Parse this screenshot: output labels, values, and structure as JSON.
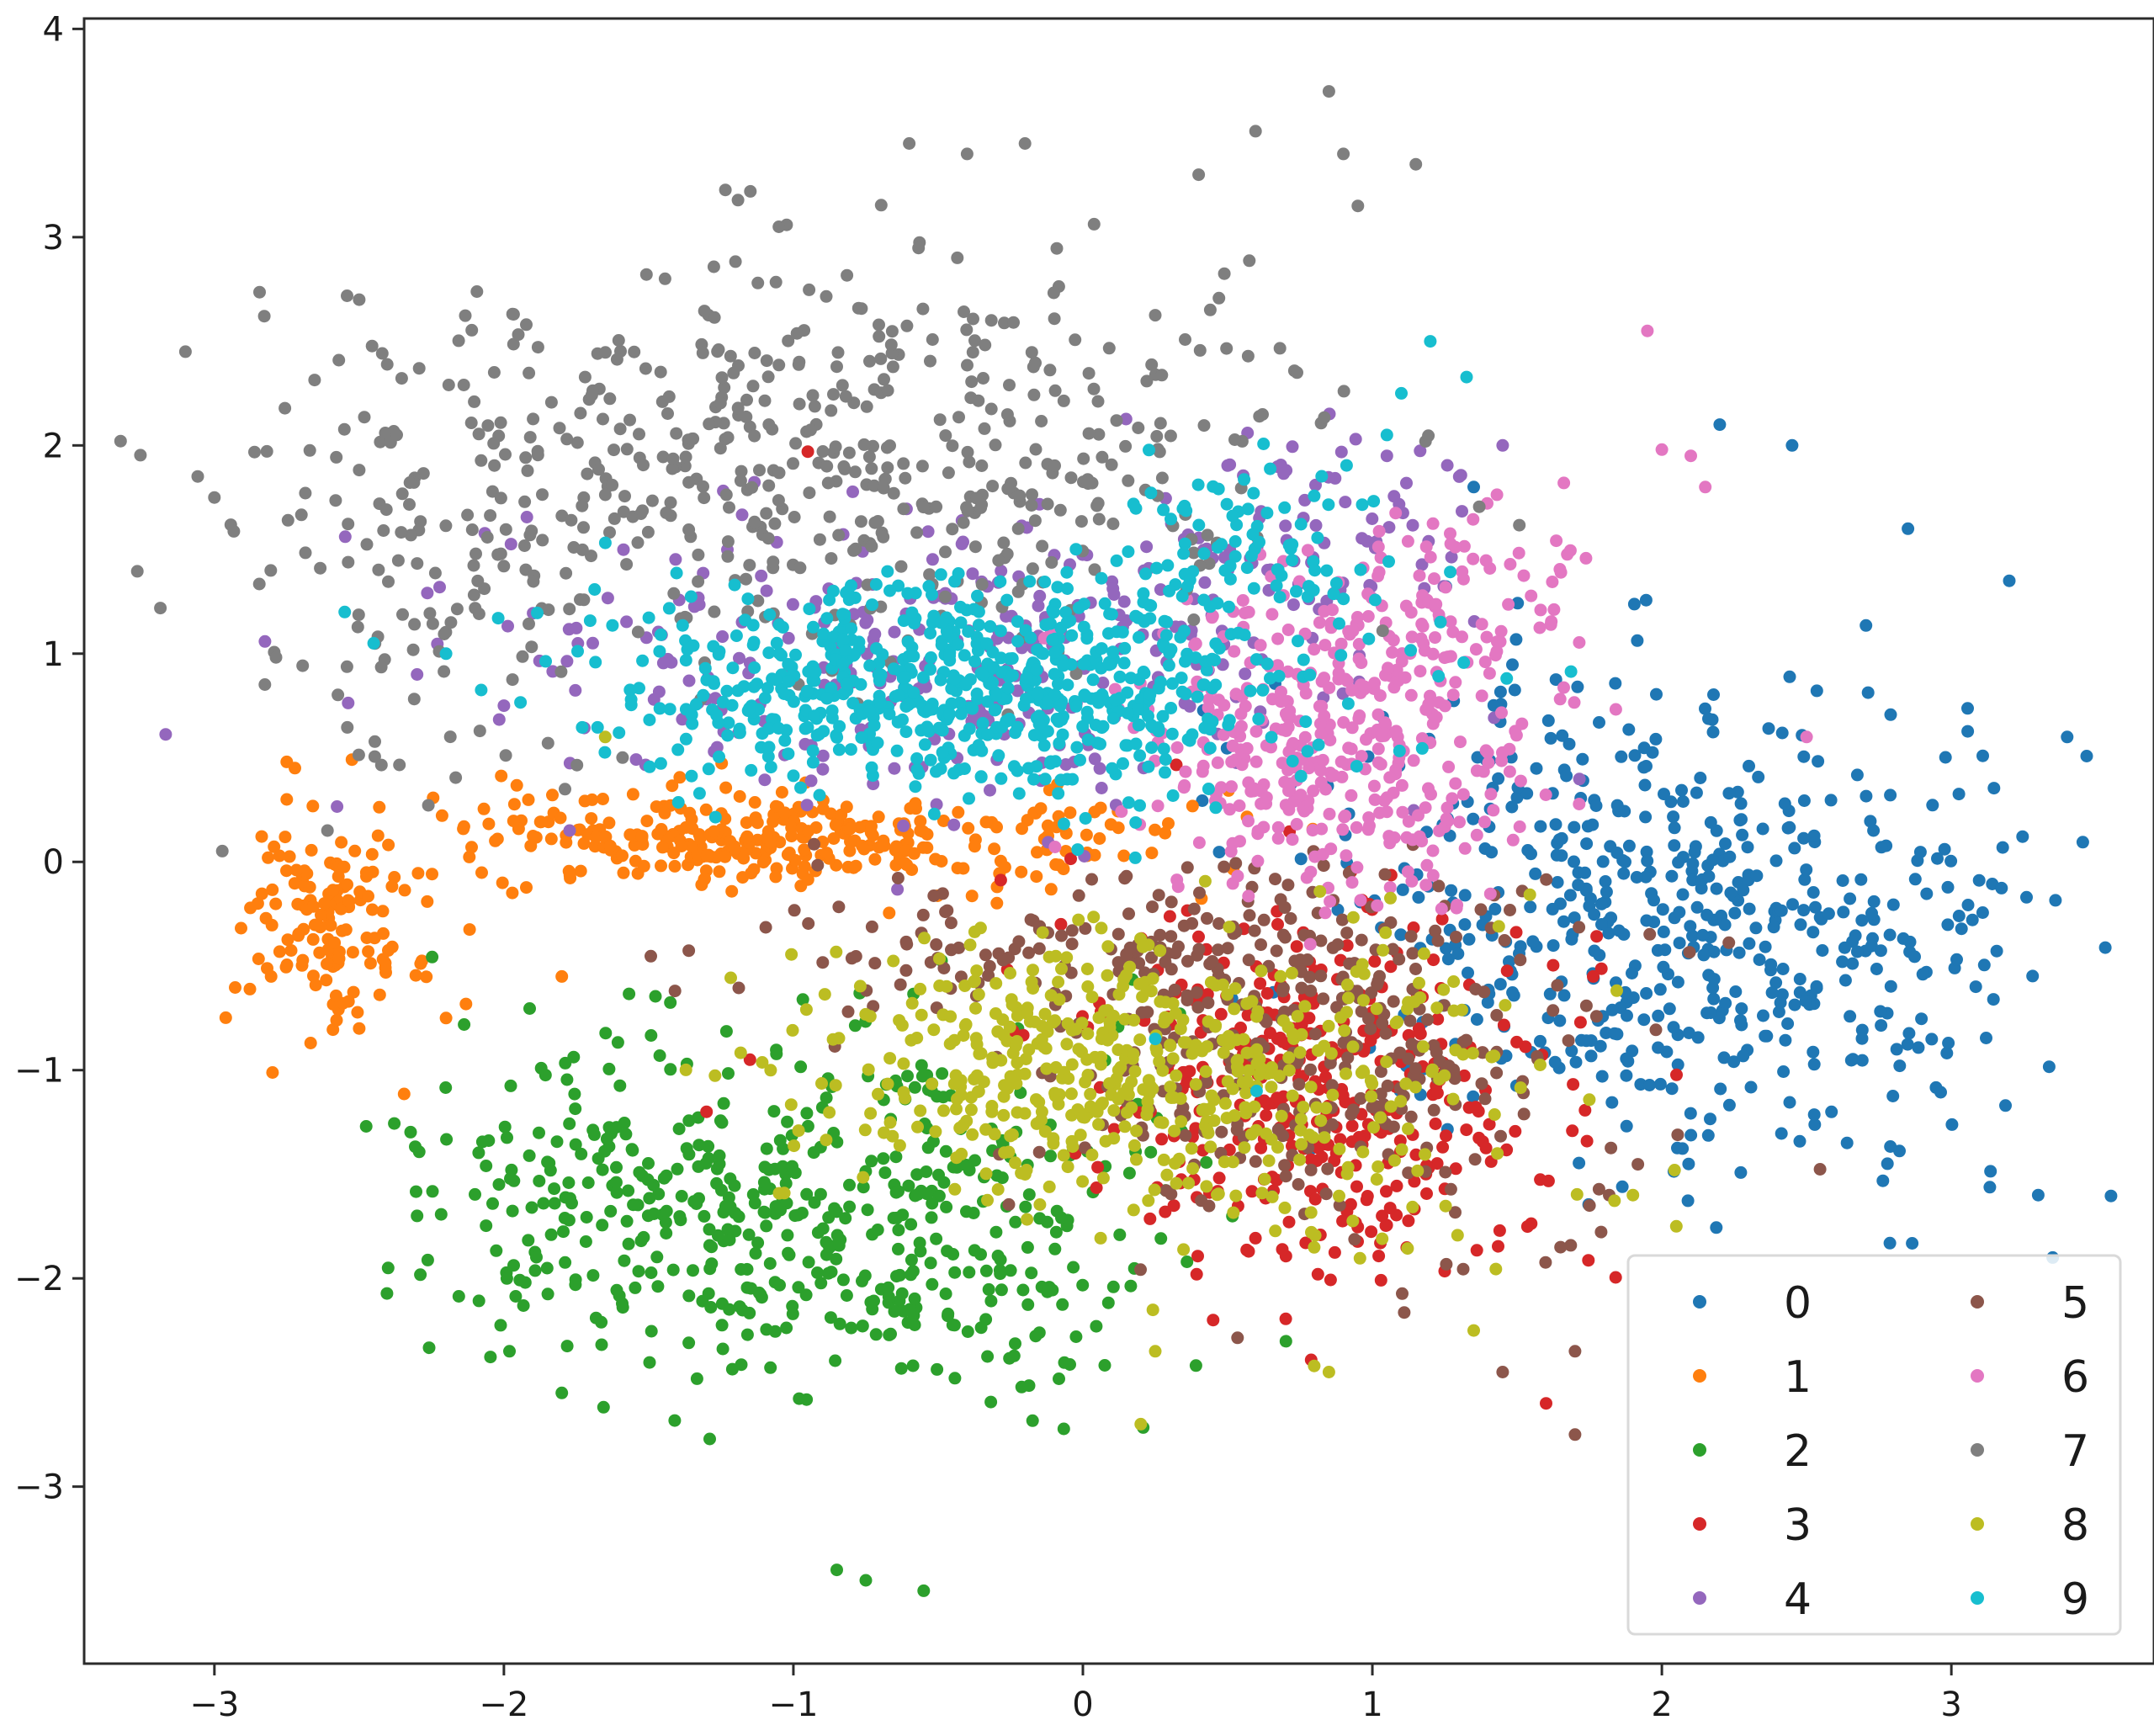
{
  "chart_data": {
    "type": "scatter",
    "title": "",
    "xlabel": "",
    "ylabel": "",
    "xlim": [
      -3.45,
      3.7
    ],
    "ylim": [
      -3.85,
      4.05
    ],
    "xticks": [
      -3,
      -2,
      -1,
      0,
      1,
      2,
      3
    ],
    "yticks": [
      -3,
      -2,
      -1,
      0,
      1,
      2,
      3,
      4
    ],
    "xtick_labels": [
      "−3",
      "−2",
      "−1",
      "0",
      "1",
      "2",
      "3"
    ],
    "ytick_labels": [
      "−3",
      "−2",
      "−1",
      "0",
      "1",
      "2",
      "3",
      "4"
    ],
    "grid": false,
    "legend": {
      "placement": "lower-right",
      "columns": 2
    },
    "series": [
      {
        "name": "0",
        "color": "#1f77b4",
        "clusters": [
          {
            "cx": 1.85,
            "cy": -0.2,
            "sx": 0.55,
            "sy": 0.55,
            "n": 420
          },
          {
            "cx": 2.6,
            "cy": -0.5,
            "sx": 0.4,
            "sy": 0.55,
            "n": 140
          }
        ],
        "points": [
          [
            1.35,
            1.8
          ],
          [
            2.2,
            2.1
          ],
          [
            2.45,
            2.0
          ],
          [
            3.4,
            0.6
          ],
          [
            3.3,
            -1.6
          ],
          [
            3.35,
            -1.9
          ],
          [
            2.85,
            1.6
          ],
          [
            3.2,
            1.35
          ]
        ]
      },
      {
        "name": "1",
        "color": "#ff7f0e",
        "clusters": [
          {
            "cx": -1.1,
            "cy": 0.1,
            "sx": 0.65,
            "sy": 0.12,
            "n": 340
          },
          {
            "cx": -2.6,
            "cy": -0.3,
            "sx": 0.15,
            "sy": 0.28,
            "n": 130
          }
        ],
        "points": [
          [
            -2.75,
            0.3
          ],
          [
            -2.85,
            -0.2
          ],
          [
            -2.5,
            -0.8
          ],
          [
            -2.2,
            -0.75
          ],
          [
            -1.8,
            -0.55
          ]
        ]
      },
      {
        "name": "2",
        "color": "#2ca02c",
        "clusters": [
          {
            "cx": -0.75,
            "cy": -1.75,
            "sx": 0.55,
            "sy": 0.45,
            "n": 420
          },
          {
            "cx": -1.7,
            "cy": -1.6,
            "sx": 0.35,
            "sy": 0.35,
            "n": 120
          }
        ],
        "points": [
          [
            -0.85,
            -3.4
          ],
          [
            -0.75,
            -3.45
          ],
          [
            -0.55,
            -3.5
          ],
          [
            -1.8,
            -2.55
          ],
          [
            -2.4,
            -1.95
          ],
          [
            -2.3,
            -1.7
          ]
        ]
      },
      {
        "name": "3",
        "color": "#d62728",
        "clusters": [
          {
            "cx": 0.8,
            "cy": -1.1,
            "sx": 0.4,
            "sy": 0.45,
            "n": 380
          }
        ],
        "points": [
          [
            1.6,
            -2.6
          ],
          [
            0.45,
            -2.2
          ],
          [
            -0.95,
            1.97
          ],
          [
            -1.3,
            -1.2
          ],
          [
            -1.15,
            -0.95
          ]
        ]
      },
      {
        "name": "4",
        "color": "#9467bd",
        "clusters": [
          {
            "cx": -0.4,
            "cy": 0.95,
            "sx": 0.8,
            "sy": 0.35,
            "n": 300
          },
          {
            "cx": 0.8,
            "cy": 1.55,
            "sx": 0.25,
            "sy": 0.25,
            "n": 70
          }
        ],
        "points": [
          [
            1.45,
            2.0
          ],
          [
            1.3,
            1.85
          ],
          [
            1.05,
            1.95
          ],
          [
            -2.0,
            0.75
          ],
          [
            -2.3,
            0.9
          ]
        ]
      },
      {
        "name": "5",
        "color": "#8c564b",
        "clusters": [
          {
            "cx": 0.85,
            "cy": -0.9,
            "sx": 0.5,
            "sy": 0.45,
            "n": 300
          },
          {
            "cx": 0.0,
            "cy": -0.4,
            "sx": 0.6,
            "sy": 0.15,
            "n": 130
          }
        ],
        "points": [
          [
            1.45,
            -2.45
          ],
          [
            1.7,
            -2.35
          ],
          [
            1.7,
            -2.75
          ],
          [
            1.75,
            -1.65
          ],
          [
            1.65,
            -1.85
          ]
        ]
      },
      {
        "name": "6",
        "color": "#e377c2",
        "clusters": [
          {
            "cx": 0.85,
            "cy": 0.55,
            "sx": 0.35,
            "sy": 0.35,
            "n": 380
          },
          {
            "cx": 1.35,
            "cy": 1.2,
            "sx": 0.22,
            "sy": 0.25,
            "n": 90
          }
        ],
        "points": [
          [
            1.95,
            2.55
          ],
          [
            2.0,
            1.98
          ],
          [
            2.1,
            1.95
          ],
          [
            2.15,
            1.8
          ],
          [
            2.5,
            0.6
          ]
        ]
      },
      {
        "name": "7",
        "color": "#7f7f7f",
        "clusters": [
          {
            "cx": -0.9,
            "cy": 1.95,
            "sx": 0.9,
            "sy": 0.5,
            "n": 520
          },
          {
            "cx": -2.3,
            "cy": 1.3,
            "sx": 0.35,
            "sy": 0.45,
            "n": 90
          }
        ],
        "points": [
          [
            -3.1,
            2.45
          ],
          [
            -3.0,
            1.75
          ],
          [
            -2.5,
            2.7
          ],
          [
            0.85,
            3.7
          ],
          [
            0.9,
            3.4
          ],
          [
            1.15,
            3.35
          ],
          [
            -0.6,
            3.45
          ],
          [
            -0.4,
            3.4
          ],
          [
            -0.2,
            3.45
          ],
          [
            -1.05,
            3.05
          ],
          [
            0.4,
            3.3
          ],
          [
            0.95,
            3.15
          ]
        ]
      },
      {
        "name": "8",
        "color": "#bcbd22",
        "clusters": [
          {
            "cx": -0.05,
            "cy": -1.0,
            "sx": 0.45,
            "sy": 0.3,
            "n": 380
          },
          {
            "cx": 0.8,
            "cy": -1.1,
            "sx": 0.45,
            "sy": 0.45,
            "n": 170
          }
        ],
        "points": [
          [
            0.2,
            -2.7
          ],
          [
            0.25,
            -2.35
          ],
          [
            0.85,
            -2.45
          ],
          [
            1.35,
            -2.25
          ],
          [
            1.9,
            -1.6
          ],
          [
            2.05,
            -1.75
          ],
          [
            -1.65,
            0.6
          ]
        ]
      },
      {
        "name": "9",
        "color": "#17becf",
        "clusters": [
          {
            "cx": -0.4,
            "cy": 0.85,
            "sx": 0.55,
            "sy": 0.25,
            "n": 700
          },
          {
            "cx": 0.55,
            "cy": 1.5,
            "sx": 0.3,
            "sy": 0.25,
            "n": 90
          }
        ],
        "points": [
          [
            1.2,
            2.5
          ],
          [
            1.1,
            2.25
          ],
          [
            1.05,
            2.05
          ],
          [
            -2.55,
            1.2
          ],
          [
            -2.45,
            1.05
          ],
          [
            -2.2,
            1.0
          ],
          [
            0.25,
            -0.85
          ],
          [
            0.6,
            -1.1
          ]
        ]
      }
    ]
  }
}
